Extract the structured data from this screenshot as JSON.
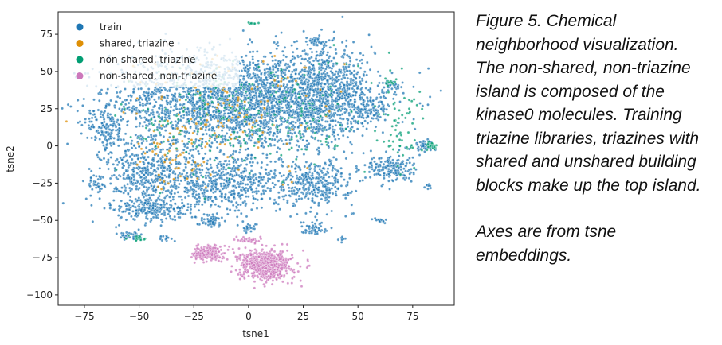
{
  "caption": {
    "lines_1": [
      "Figure 5. Chemical",
      "neighborhood visualization.",
      "The non-shared, non-triazine",
      "island is composed of the",
      "kinase0 molecules. Training",
      "triazine libraries, triazines with",
      "shared and unshared building",
      "blocks make up the top island."
    ],
    "lines_2": [
      "Axes are from tsne",
      "embeddings."
    ]
  },
  "chart_data": {
    "type": "scatter",
    "xlabel": "tsne1",
    "ylabel": "tsne2",
    "xlim": [
      -87,
      94
    ],
    "ylim": [
      -107,
      90
    ],
    "xticks": [
      -75,
      -50,
      -25,
      0,
      25,
      50,
      75
    ],
    "yticks": [
      -100,
      -75,
      -50,
      -25,
      0,
      25,
      50,
      75
    ],
    "grid": false,
    "legend": {
      "placement": "top-left",
      "entries": [
        "train",
        "shared, triazine",
        "non-shared, triazine",
        "non-shared, non-triazine"
      ]
    },
    "series": [
      {
        "name": "train",
        "color": "#1f77b4",
        "clusters": [
          {
            "cx": -5,
            "cy": 30,
            "rx": 58,
            "ry": 33,
            "n": 2600
          },
          {
            "cx": 35,
            "cy": 35,
            "rx": 22,
            "ry": 28,
            "n": 700
          },
          {
            "cx": -45,
            "cy": -20,
            "rx": 22,
            "ry": 25,
            "n": 500
          },
          {
            "cx": -10,
            "cy": -25,
            "rx": 25,
            "ry": 18,
            "n": 500
          },
          {
            "cx": 30,
            "cy": -25,
            "rx": 18,
            "ry": 15,
            "n": 350
          },
          {
            "cx": 65,
            "cy": -15,
            "rx": 10,
            "ry": 10,
            "n": 170
          },
          {
            "cx": 55,
            "cy": 25,
            "rx": 8,
            "ry": 10,
            "n": 100
          },
          {
            "cx": -65,
            "cy": 10,
            "rx": 8,
            "ry": 15,
            "n": 120
          },
          {
            "cx": -45,
            "cy": -42,
            "rx": 15,
            "ry": 8,
            "n": 200
          },
          {
            "cx": -18,
            "cy": -50,
            "rx": 6,
            "ry": 4,
            "n": 60
          },
          {
            "cx": 30,
            "cy": -55,
            "rx": 6,
            "ry": 5,
            "n": 50
          },
          {
            "cx": 80,
            "cy": 0,
            "rx": 5,
            "ry": 4,
            "n": 40
          },
          {
            "cx": -55,
            "cy": -60,
            "rx": 5,
            "ry": 3,
            "n": 35
          },
          {
            "cx": 30,
            "cy": 70,
            "rx": 5,
            "ry": 3,
            "n": 40
          },
          {
            "cx": 66,
            "cy": 40,
            "rx": 5,
            "ry": 4,
            "n": 30
          },
          {
            "cx": 60,
            "cy": -50,
            "rx": 3,
            "ry": 2,
            "n": 15
          },
          {
            "cx": -70,
            "cy": -25,
            "rx": 4,
            "ry": 6,
            "n": 30
          },
          {
            "cx": 82,
            "cy": -27,
            "rx": 2,
            "ry": 2,
            "n": 8
          },
          {
            "cx": 43,
            "cy": -62,
            "rx": 2,
            "ry": 2,
            "n": 8
          },
          {
            "cx": -38,
            "cy": -62,
            "rx": 3,
            "ry": 2,
            "n": 12
          },
          {
            "cx": 0,
            "cy": -55,
            "rx": 4,
            "ry": 3,
            "n": 25
          }
        ]
      },
      {
        "name": "shared, triazine",
        "color": "#de8f05",
        "clusters": [
          {
            "cx": -10,
            "cy": 20,
            "rx": 50,
            "ry": 40,
            "n": 150
          },
          {
            "cx": -35,
            "cy": -10,
            "rx": 15,
            "ry": 20,
            "n": 40
          }
        ]
      },
      {
        "name": "non-shared, triazine",
        "color": "#029e73",
        "clusters": [
          {
            "cx": 0,
            "cy": 20,
            "rx": 55,
            "ry": 40,
            "n": 250
          },
          {
            "cx": 70,
            "cy": 10,
            "rx": 12,
            "ry": 30,
            "n": 60
          },
          {
            "cx": 83,
            "cy": 0,
            "rx": 3,
            "ry": 3,
            "n": 20
          },
          {
            "cx": -50,
            "cy": -62,
            "rx": 4,
            "ry": 2,
            "n": 15
          },
          {
            "cx": 2,
            "cy": 82,
            "rx": 2,
            "ry": 1,
            "n": 10
          },
          {
            "cx": 65,
            "cy": 43,
            "rx": 3,
            "ry": 2,
            "n": 15
          }
        ]
      },
      {
        "name": "non-shared, non-triazine",
        "color": "#cc78bc",
        "clusters": [
          {
            "cx": 8,
            "cy": -80,
            "rx": 12,
            "ry": 10,
            "n": 600
          },
          {
            "cx": -18,
            "cy": -72,
            "rx": 7,
            "ry": 5,
            "n": 180
          },
          {
            "cx": 0,
            "cy": -63,
            "rx": 4,
            "ry": 2,
            "n": 40
          }
        ]
      }
    ]
  }
}
